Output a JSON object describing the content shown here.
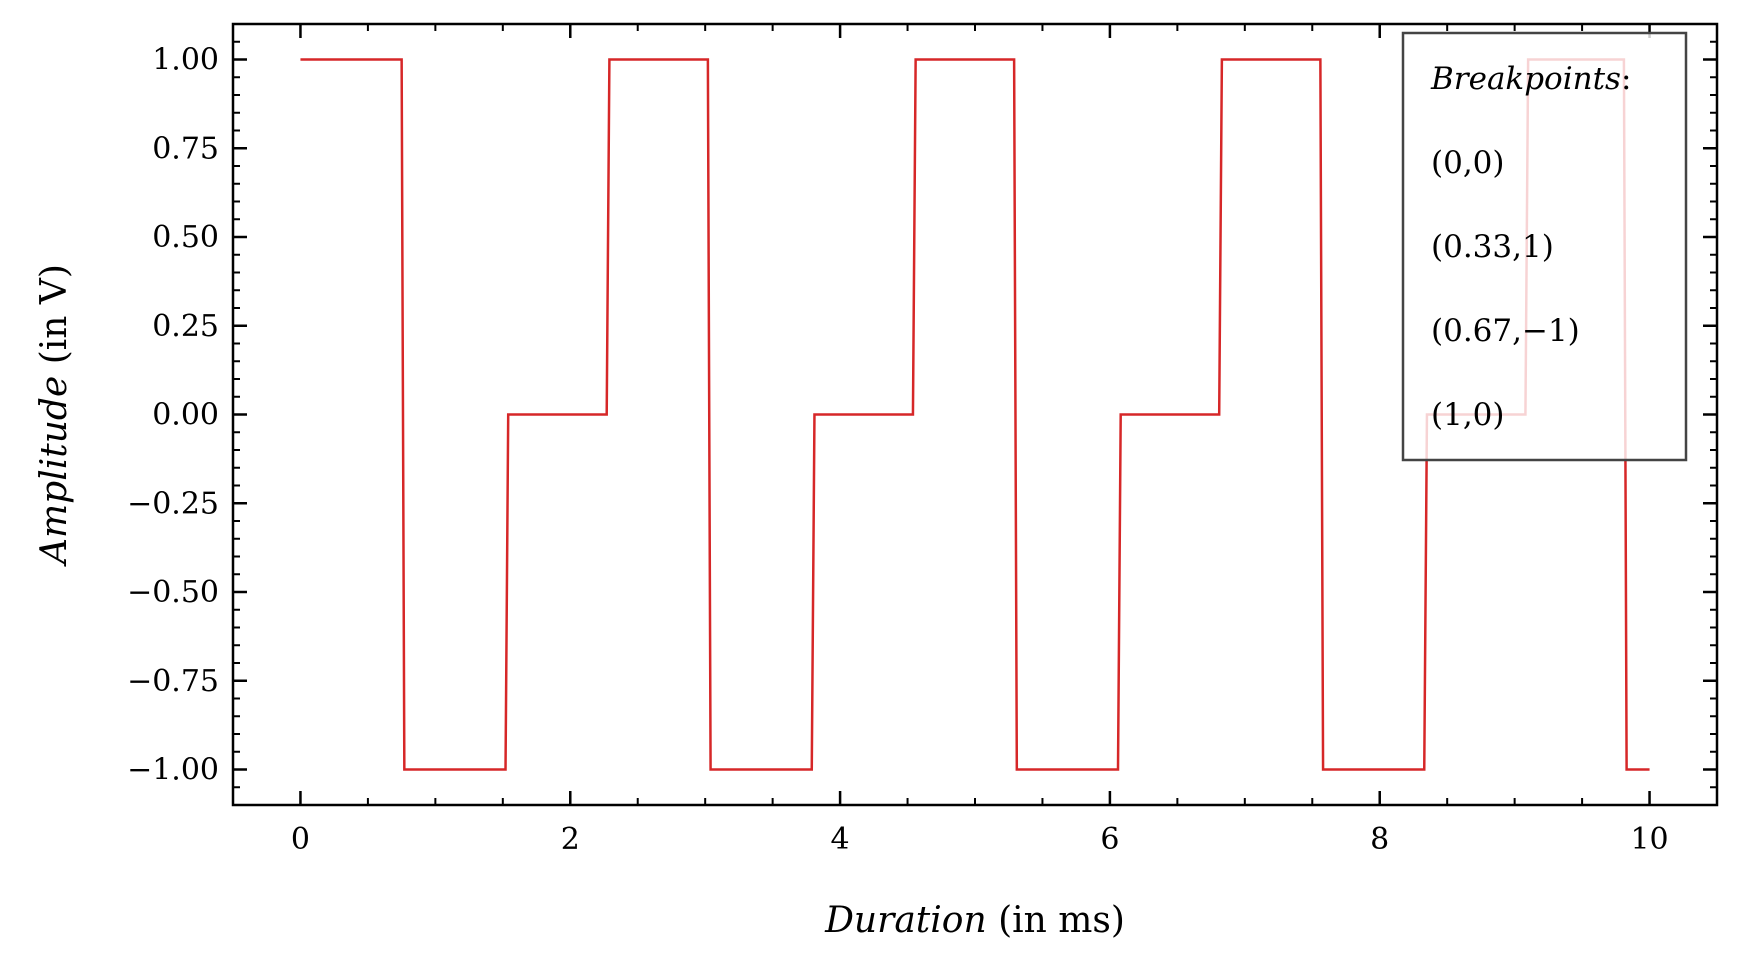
{
  "chart_data": {
    "type": "line",
    "title": "",
    "xlabel": {
      "italic": "Duration",
      "plain": "(in ms)"
    },
    "ylabel": {
      "italic": "Amplitude",
      "plain": "(in V)"
    },
    "xlim": [
      -0.5,
      10.5
    ],
    "ylim": [
      -1.1,
      1.1
    ],
    "xticks": [
      0,
      2,
      4,
      6,
      8,
      10
    ],
    "xtick_labels": [
      "0",
      "2",
      "4",
      "6",
      "8",
      "10"
    ],
    "yticks": [
      1.0,
      0.75,
      0.5,
      0.25,
      0.0,
      -0.25,
      -0.5,
      -0.75,
      -1.0
    ],
    "ytick_labels": [
      "1.00",
      "0.75",
      "0.50",
      "0.25",
      "0.00",
      "−0.25",
      "−0.50",
      "−0.75",
      "−1.00"
    ],
    "grid": false,
    "line_color": "#d62728",
    "series": [
      {
        "x": [
          0,
          0.75,
          0.77,
          1.52,
          1.54,
          2.27,
          2.29,
          3.02,
          3.04,
          3.79,
          3.81,
          4.54,
          4.56,
          5.29,
          5.31,
          6.06,
          6.08,
          6.81,
          6.83,
          7.56,
          7.58,
          8.33,
          8.35,
          9.08,
          9.1,
          9.81,
          9.83,
          10.0
        ],
        "y": [
          1,
          1,
          -1,
          -1,
          0,
          0,
          1,
          1,
          -1,
          -1,
          0,
          0,
          1,
          1,
          -1,
          -1,
          0,
          0,
          1,
          1,
          -1,
          -1,
          0,
          0,
          1,
          1,
          -1,
          -1
        ]
      }
    ],
    "legend": {
      "placement": "top-right",
      "title": "Breakpoints",
      "title_suffix": ":",
      "entries": [
        "(0,0)",
        "(0.33,1)",
        "(0.67,−1)",
        "(1,0)"
      ]
    }
  }
}
